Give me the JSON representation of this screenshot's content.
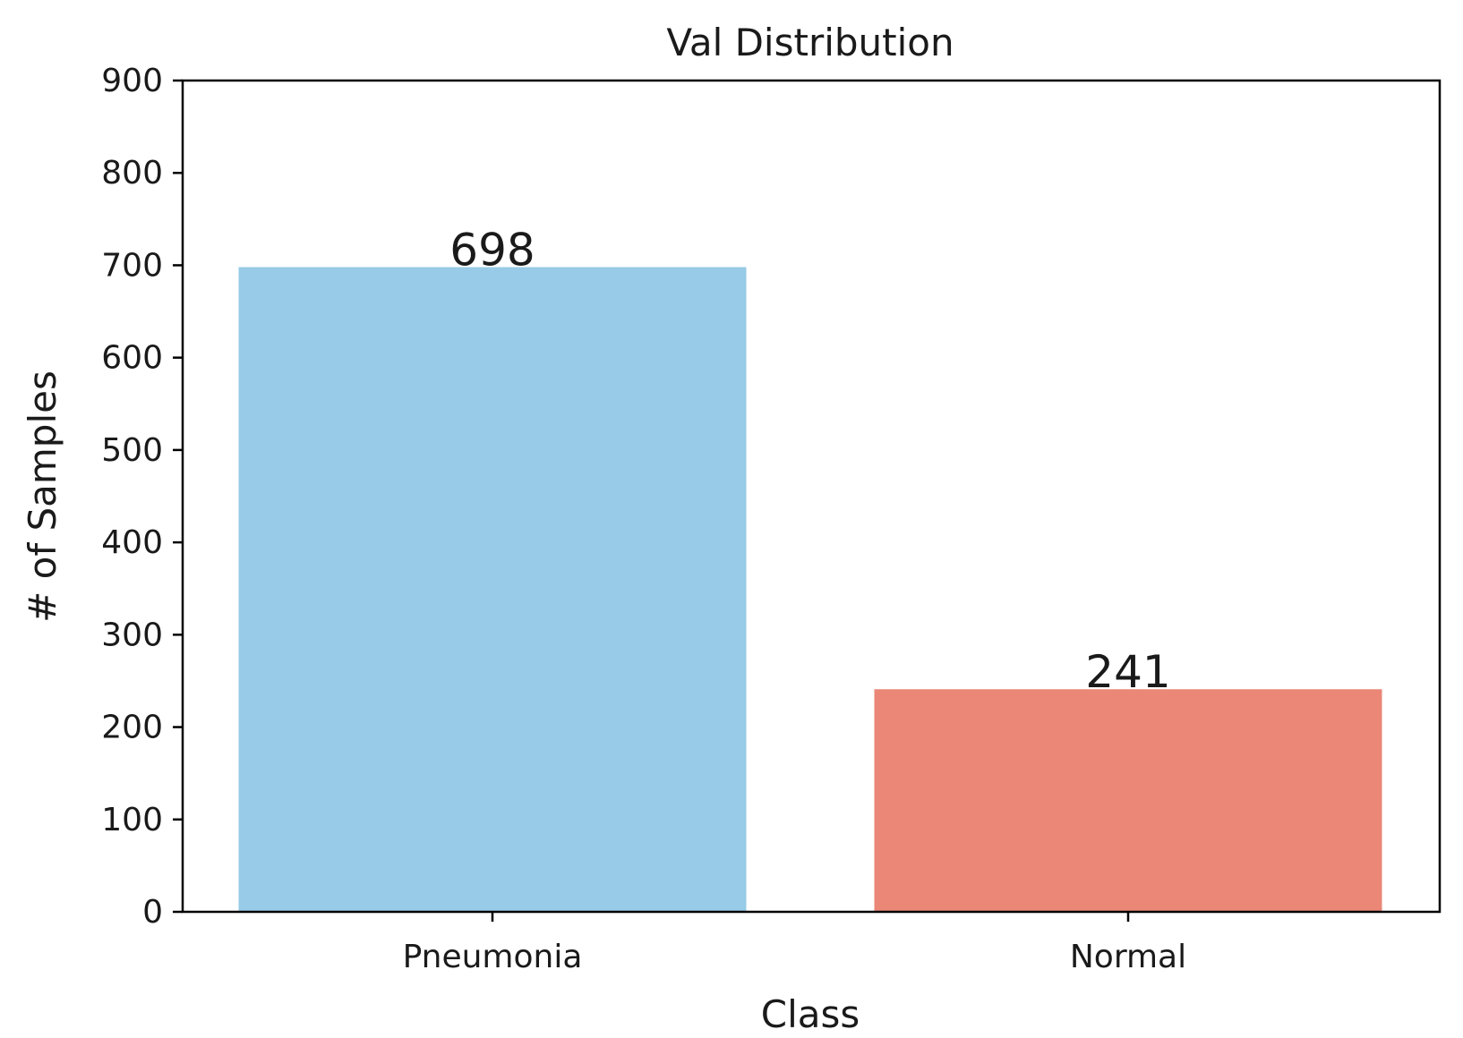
{
  "chart_data": {
    "type": "bar",
    "title": "Val Distribution",
    "xlabel": "Class",
    "ylabel": "# of Samples",
    "categories": [
      "Pneumonia",
      "Normal"
    ],
    "values": [
      698,
      241
    ],
    "value_labels": [
      "698",
      "241"
    ],
    "colors": [
      "#97cbe7",
      "#ea8777"
    ],
    "ylim": [
      0,
      900
    ],
    "yticks": [
      0,
      100,
      200,
      300,
      400,
      500,
      600,
      700,
      800,
      900
    ],
    "ytick_labels": [
      "0",
      "100",
      "200",
      "300",
      "400",
      "500",
      "600",
      "700",
      "800",
      "900"
    ],
    "grid": false,
    "legend": "none"
  }
}
